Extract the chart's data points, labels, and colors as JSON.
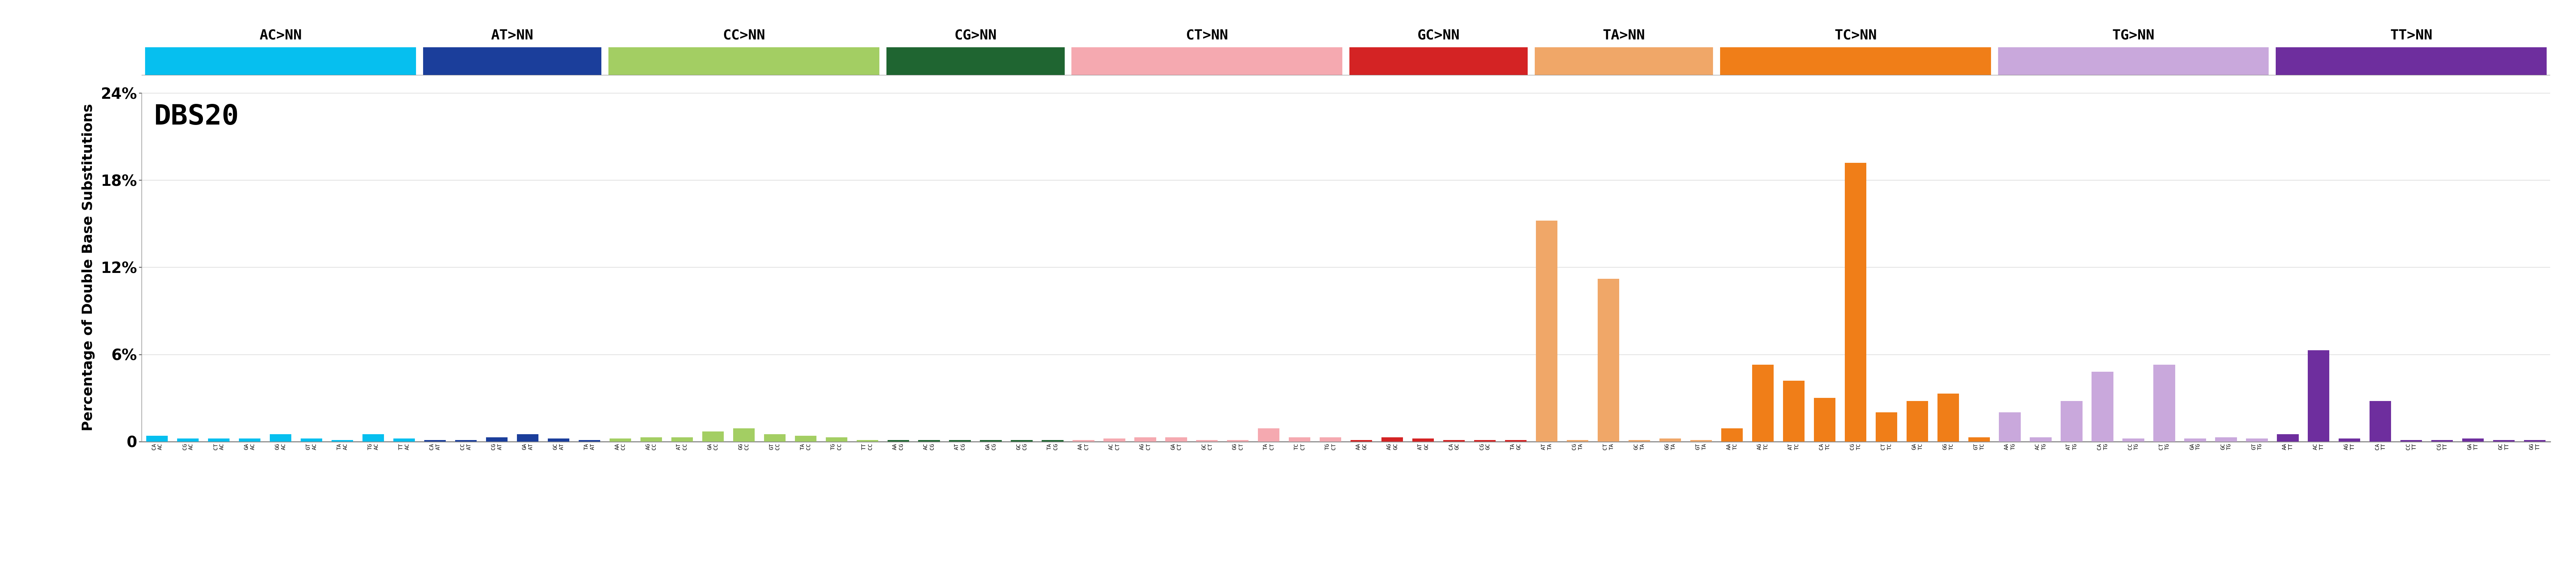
{
  "title": "DBS20",
  "ylabel": "Percentage of Double Base Substitutions",
  "ylim": [
    0,
    0.24
  ],
  "yticks": [
    0,
    0.06,
    0.12,
    0.18,
    0.24
  ],
  "ytick_labels": [
    "0",
    "6%",
    "12%",
    "18%",
    "24%"
  ],
  "categories": [
    "CA",
    "CG",
    "CT",
    "GA",
    "GG",
    "GT",
    "TA",
    "TG",
    "TT",
    "CA",
    "CC",
    "CG",
    "GA",
    "GC",
    "TA",
    "AA",
    "AG",
    "AT",
    "GA",
    "GG",
    "GT",
    "TA",
    "TG",
    "TT",
    "AA",
    "AC",
    "AT",
    "GA",
    "GC",
    "TA",
    "AA",
    "AC",
    "AG",
    "GA",
    "GC",
    "GG",
    "TA",
    "TC",
    "TG",
    "AA",
    "AG",
    "AT",
    "CA",
    "CG",
    "TA",
    "AT",
    "CG",
    "CT",
    "GC",
    "GG",
    "GT",
    "AA",
    "AG",
    "AT",
    "CA",
    "CG",
    "CT",
    "GA",
    "GG",
    "GT",
    "AA",
    "AC",
    "AT",
    "CA",
    "CC",
    "CT",
    "GA",
    "GC",
    "GT",
    "AA",
    "AC",
    "AG",
    "CA",
    "CC",
    "CG",
    "GA",
    "GC",
    "GG"
  ],
  "categories_full": [
    "AC>CA",
    "AC>CG",
    "AC>CT",
    "AC>GA",
    "AC>GG",
    "AC>GT",
    "AC>TA",
    "AC>TG",
    "AC>TT",
    "AT>CA",
    "AT>CC",
    "AT>CG",
    "AT>GA",
    "AT>GC",
    "AT>TA",
    "CC>AA",
    "CC>AG",
    "CC>AT",
    "CC>GA",
    "CC>GG",
    "CC>GT",
    "CC>TA",
    "CC>TG",
    "CC>TT",
    "CG>AA",
    "CG>AC",
    "CG>AT",
    "CG>GA",
    "CG>GC",
    "CG>TA",
    "CT>AA",
    "CT>AC",
    "CT>AG",
    "CT>GA",
    "CT>GC",
    "CT>GG",
    "CT>TA",
    "CT>TC",
    "CT>TG",
    "GC>AA",
    "GC>AG",
    "GC>AT",
    "GC>CA",
    "GC>CG",
    "GC>TA",
    "TA>AT",
    "TA>CG",
    "TA>CT",
    "TA>GC",
    "TA>GG",
    "TA>GT",
    "TC>AA",
    "TC>AG",
    "TC>AT",
    "TC>CA",
    "TC>CG",
    "TC>CT",
    "TC>GA",
    "TC>GG",
    "TC>GT",
    "TG>AA",
    "TG>AC",
    "TG>AT",
    "TG>CA",
    "TG>CC",
    "TG>CT",
    "TG>GA",
    "TG>GC",
    "TG>GT",
    "TT>AA",
    "TT>AC",
    "TT>AG",
    "TT>CA",
    "TT>CC",
    "TT>CG",
    "TT>GA",
    "TT>GC",
    "TT>GG"
  ],
  "values": [
    0.004,
    0.002,
    0.002,
    0.002,
    0.005,
    0.002,
    0.001,
    0.005,
    0.002,
    0.001,
    0.001,
    0.003,
    0.005,
    0.002,
    0.001,
    0.002,
    0.003,
    0.003,
    0.007,
    0.009,
    0.005,
    0.004,
    0.003,
    0.001,
    0.001,
    0.001,
    0.001,
    0.001,
    0.001,
    0.001,
    0.001,
    0.002,
    0.003,
    0.003,
    0.001,
    0.001,
    0.009,
    0.003,
    0.003,
    0.001,
    0.003,
    0.002,
    0.001,
    0.001,
    0.001,
    0.152,
    0.001,
    0.112,
    0.001,
    0.002,
    0.001,
    0.009,
    0.053,
    0.042,
    0.03,
    0.192,
    0.02,
    0.028,
    0.033,
    0.003,
    0.02,
    0.003,
    0.028,
    0.048,
    0.002,
    0.053,
    0.002,
    0.003,
    0.002,
    0.005,
    0.063,
    0.002,
    0.028,
    0.001,
    0.001,
    0.002,
    0.001,
    0.001
  ],
  "group_labels": [
    "AC>NN",
    "AT>NN",
    "CC>NN",
    "CG>NN",
    "CT>NN",
    "GC>NN",
    "TA>NN",
    "TC>NN",
    "TG>NN",
    "TT>NN"
  ],
  "group_sizes": [
    9,
    6,
    9,
    6,
    9,
    6,
    6,
    9,
    9,
    9
  ],
  "group_colors": [
    "#06BFEF",
    "#1B3E9B",
    "#A3CE63",
    "#1F6531",
    "#F5A9B0",
    "#D42324",
    "#F0A768",
    "#F07E18",
    "#C9A8DC",
    "#6E2E9E"
  ],
  "bar_width": 0.7,
  "figure_width": 65.88,
  "figure_height": 14.88,
  "dpi": 100,
  "background_color": "#FFFFFF"
}
